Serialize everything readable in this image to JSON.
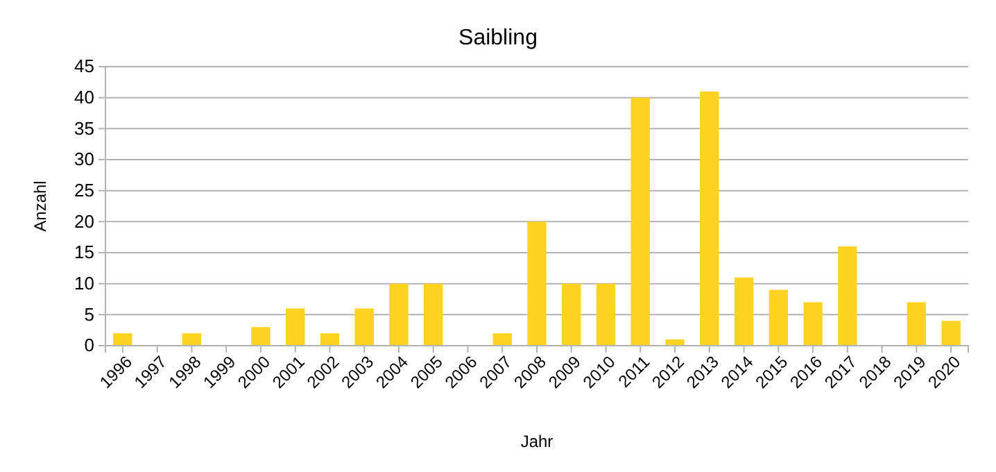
{
  "chart_data": {
    "type": "bar",
    "title": "Saibling",
    "xlabel": "Jahr",
    "ylabel": "Anzahl",
    "categories": [
      "1996",
      "1997",
      "1998",
      "1999",
      "2000",
      "2001",
      "2002",
      "2003",
      "2004",
      "2005",
      "2006",
      "2007",
      "2008",
      "2009",
      "2010",
      "2011",
      "2012",
      "2013",
      "2014",
      "2015",
      "2016",
      "2017",
      "2018",
      "2019",
      "2020"
    ],
    "values": [
      2,
      0,
      2,
      0,
      3,
      6,
      2,
      6,
      10,
      10,
      0,
      2,
      20,
      10,
      10,
      40,
      1,
      41,
      11,
      9,
      7,
      16,
      0,
      7,
      4
    ],
    "color": "#ffd320",
    "ylim": [
      0,
      45
    ],
    "yticks": [
      0,
      5,
      10,
      15,
      20,
      25,
      30,
      35,
      40,
      45
    ],
    "grid": "y"
  }
}
